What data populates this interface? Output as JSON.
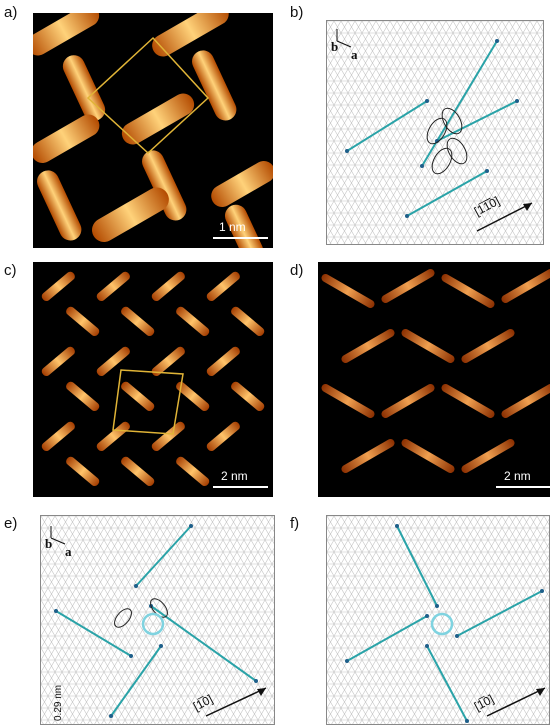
{
  "labels": {
    "a": "a)",
    "b": "b)",
    "c": "c)",
    "d": "d)",
    "e": "e)",
    "f": "f)"
  },
  "scalebars": {
    "a": "1 nm",
    "c": "2 nm",
    "d": "2 nm"
  },
  "directions": {
    "b": "[1̅1̅̅0]",
    "e": "[1̅0]",
    "f": "[1̅0]"
  },
  "vectors": {
    "b_vec": "b",
    "a_vec": "a"
  },
  "spacing": "0.29 nm",
  "colors": {
    "molecule": "#2aa3a8",
    "node": "#1e5f8a",
    "grid": "#bdbdbd",
    "unitcell": "#e0b437",
    "arrow": "#7fd3e0"
  }
}
